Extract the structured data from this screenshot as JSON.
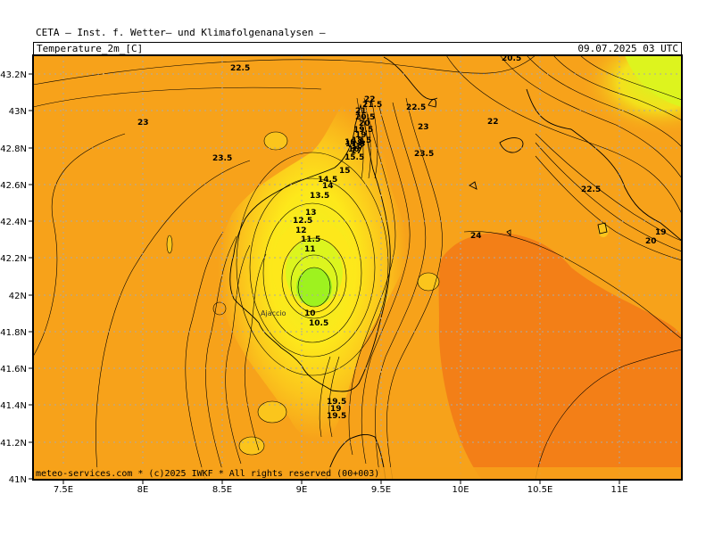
{
  "header": {
    "title": "CETA — Inst. f. Wetter— und Klimafolgenanalysen —",
    "parameter": "Temperature_2m_[C]",
    "valid_time": "09.07.2025 03 UTC"
  },
  "footer": "meteo-services.com * (c)2025 IWKF * All rights reserved (00+003)",
  "axes": {
    "lat_ticks": [
      "43.2N",
      "43N",
      "42.8N",
      "42.6N",
      "42.4N",
      "42.2N",
      "42N",
      "41.8N",
      "41.6N",
      "41.4N",
      "41.2N",
      "41N"
    ],
    "lon_ticks": [
      "7.5E",
      "8E",
      "8.5E",
      "9E",
      "9.5E",
      "10E",
      "10.5E",
      "11E"
    ]
  },
  "places": {
    "ajaccio": "Ajaccio"
  },
  "colors": {
    "orange_23": "#f7a21a",
    "orange_24": "#f37f17",
    "yellow_warm": "#fbc51c",
    "yellow": "#fde81b",
    "lime": "#dcf51e",
    "green": "#9ef21f"
  },
  "contour_labels": [
    {
      "text": "22.5"
    },
    {
      "text": "23"
    },
    {
      "text": "23.5"
    },
    {
      "text": "22"
    },
    {
      "text": "21.5"
    },
    {
      "text": "21"
    },
    {
      "text": "20.5"
    },
    {
      "text": "20"
    },
    {
      "text": "19.5"
    },
    {
      "text": "19"
    },
    {
      "text": "18.5"
    },
    {
      "text": "18"
    },
    {
      "text": "17.5"
    },
    {
      "text": "17"
    },
    {
      "text": "16.5"
    },
    {
      "text": "16"
    },
    {
      "text": "15.5"
    },
    {
      "text": "15"
    },
    {
      "text": "14.5"
    },
    {
      "text": "14"
    },
    {
      "text": "13.5"
    },
    {
      "text": "13"
    },
    {
      "text": "12.5"
    },
    {
      "text": "12"
    },
    {
      "text": "11.5"
    },
    {
      "text": "11"
    },
    {
      "text": "10"
    },
    {
      "text": "10.5"
    },
    {
      "text": "22.5"
    },
    {
      "text": "23"
    },
    {
      "text": "23.5"
    },
    {
      "text": "22"
    },
    {
      "text": "22.5"
    },
    {
      "text": "24"
    },
    {
      "text": "20"
    },
    {
      "text": "19"
    },
    {
      "text": "20.5"
    },
    {
      "text": "19.5"
    },
    {
      "text": "19"
    },
    {
      "text": "19.5"
    }
  ]
}
